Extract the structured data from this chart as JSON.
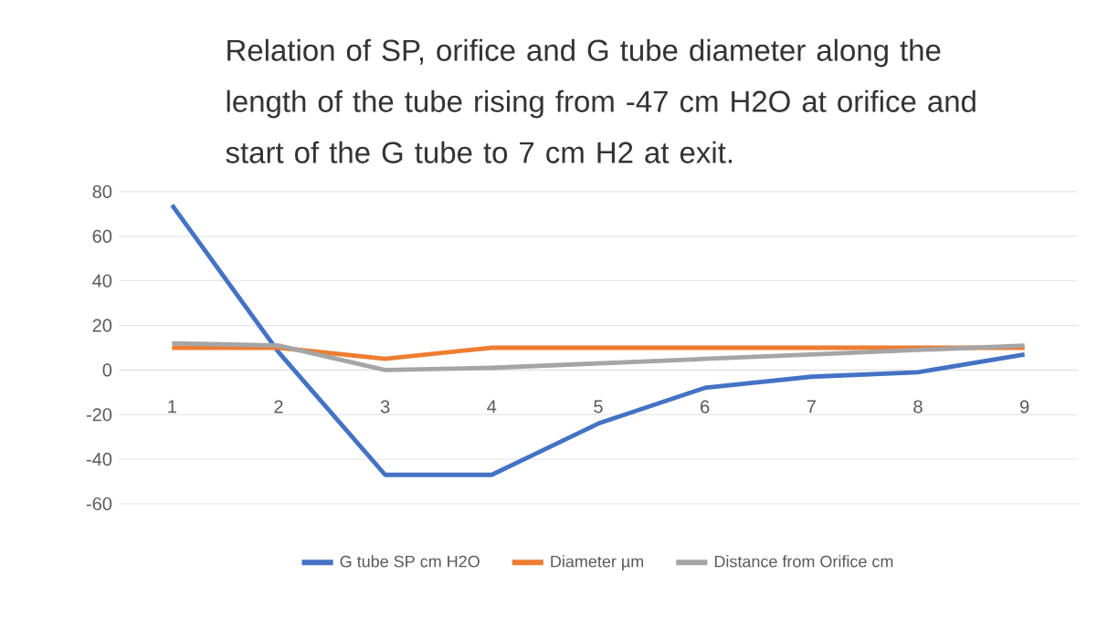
{
  "chart_data": {
    "type": "line",
    "title": "Relation of SP, orifice and G tube diameter along the length of the tube rising from -47 cm H2O at orifice and start of the G tube to 7 cm H2 at exit.",
    "categories": [
      "1",
      "2",
      "3",
      "4",
      "5",
      "6",
      "7",
      "8",
      "9"
    ],
    "series": [
      {
        "name": "G tube  SP cm H2O",
        "color": "#4472c4",
        "values": [
          74,
          8,
          -47,
          -47,
          -24,
          -8,
          -3,
          -1,
          7
        ]
      },
      {
        "name": "Diameter µm",
        "color": "#ed7d31",
        "values": [
          10,
          10,
          5,
          10,
          10,
          10,
          10,
          10,
          10
        ]
      },
      {
        "name": "Distance from Orifice cm",
        "color": "#a5a5a5",
        "values": [
          12,
          11,
          0,
          1,
          3,
          5,
          7,
          9,
          11
        ]
      }
    ],
    "ylim": [
      -60,
      80
    ],
    "yticks": [
      -60,
      -40,
      -20,
      0,
      20,
      40,
      60,
      80
    ],
    "grid": "y",
    "legend": "bottom",
    "marker": "none",
    "line_style": "solid"
  }
}
